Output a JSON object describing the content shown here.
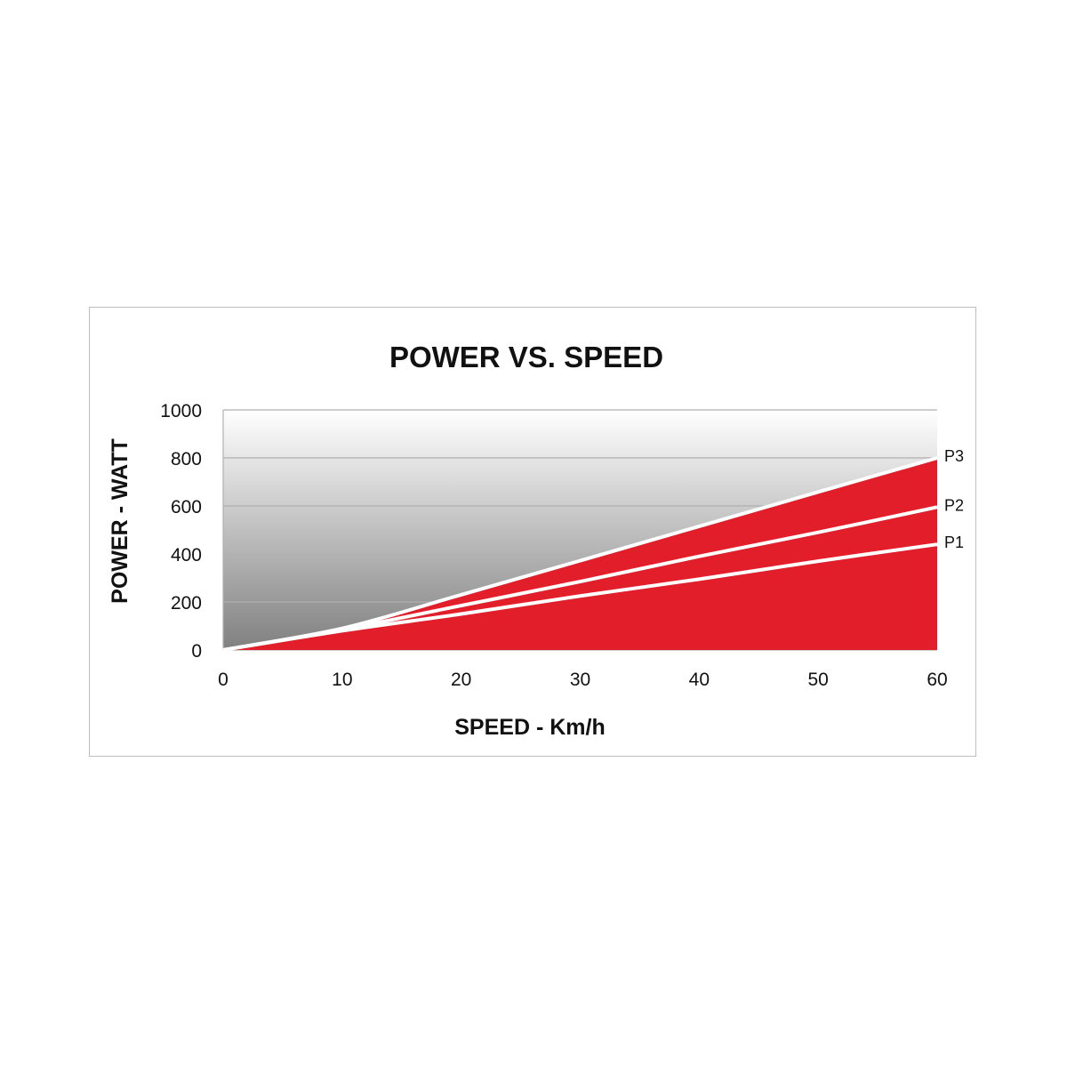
{
  "chart_data": {
    "type": "area",
    "title": "POWER VS. SPEED",
    "xlabel": "SPEED - Km/h",
    "ylabel": "POWER - WATT",
    "xlim": [
      0,
      60
    ],
    "ylim": [
      0,
      1000
    ],
    "xticks": [
      0,
      10,
      20,
      30,
      40,
      50,
      60
    ],
    "yticks": [
      0,
      200,
      400,
      600,
      800,
      1000
    ],
    "grid": true,
    "x": [
      0,
      10,
      20,
      30,
      40,
      50,
      60
    ],
    "series": [
      {
        "name": "P1",
        "values": [
          0,
          80,
          150,
          225,
          295,
          370,
          440
        ]
      },
      {
        "name": "P2",
        "values": [
          0,
          85,
          185,
          285,
          390,
          490,
          595
        ]
      },
      {
        "name": "P3",
        "values": [
          0,
          90,
          230,
          372,
          515,
          658,
          800
        ]
      }
    ],
    "colors": {
      "fill": "#e31e2b",
      "line": "#ffffff",
      "background_top": "#ffffff",
      "background_bottom": "#808080",
      "grid": "#b0b0b0"
    }
  }
}
